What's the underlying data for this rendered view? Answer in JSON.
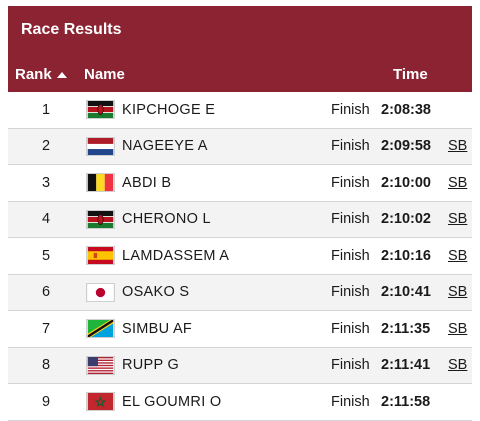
{
  "header": {
    "title": "Race Results",
    "col_rank": "Rank",
    "col_name": "Name",
    "col_time": "Time"
  },
  "results": [
    {
      "rank": "1",
      "flag": "kenya-flag-icon",
      "name": "KIPCHOGE E",
      "status": "Finish",
      "time": "2:08:38",
      "note": ""
    },
    {
      "rank": "2",
      "flag": "netherlands-flag-icon",
      "name": "NAGEEYE A",
      "status": "Finish",
      "time": "2:09:58",
      "note": "SB"
    },
    {
      "rank": "3",
      "flag": "belgium-flag-icon",
      "name": "ABDI B",
      "status": "Finish",
      "time": "2:10:00",
      "note": "SB"
    },
    {
      "rank": "4",
      "flag": "kenya-flag-icon",
      "name": "CHERONO L",
      "status": "Finish",
      "time": "2:10:02",
      "note": "SB"
    },
    {
      "rank": "5",
      "flag": "spain-flag-icon",
      "name": "LAMDASSEM A",
      "status": "Finish",
      "time": "2:10:16",
      "note": "SB"
    },
    {
      "rank": "6",
      "flag": "japan-flag-icon",
      "name": "OSAKO S",
      "status": "Finish",
      "time": "2:10:41",
      "note": "SB"
    },
    {
      "rank": "7",
      "flag": "tanzania-flag-icon",
      "name": "SIMBU AF",
      "status": "Finish",
      "time": "2:11:35",
      "note": "SB"
    },
    {
      "rank": "8",
      "flag": "usa-flag-icon",
      "name": "RUPP G",
      "status": "Finish",
      "time": "2:11:41",
      "note": "SB"
    },
    {
      "rank": "9",
      "flag": "morocco-flag-icon",
      "name": "EL GOUMRI O",
      "status": "Finish",
      "time": "2:11:58",
      "note": ""
    }
  ],
  "colors": {
    "header_bg": "#8b2333",
    "row_alt_bg": "#f3f3f3"
  }
}
